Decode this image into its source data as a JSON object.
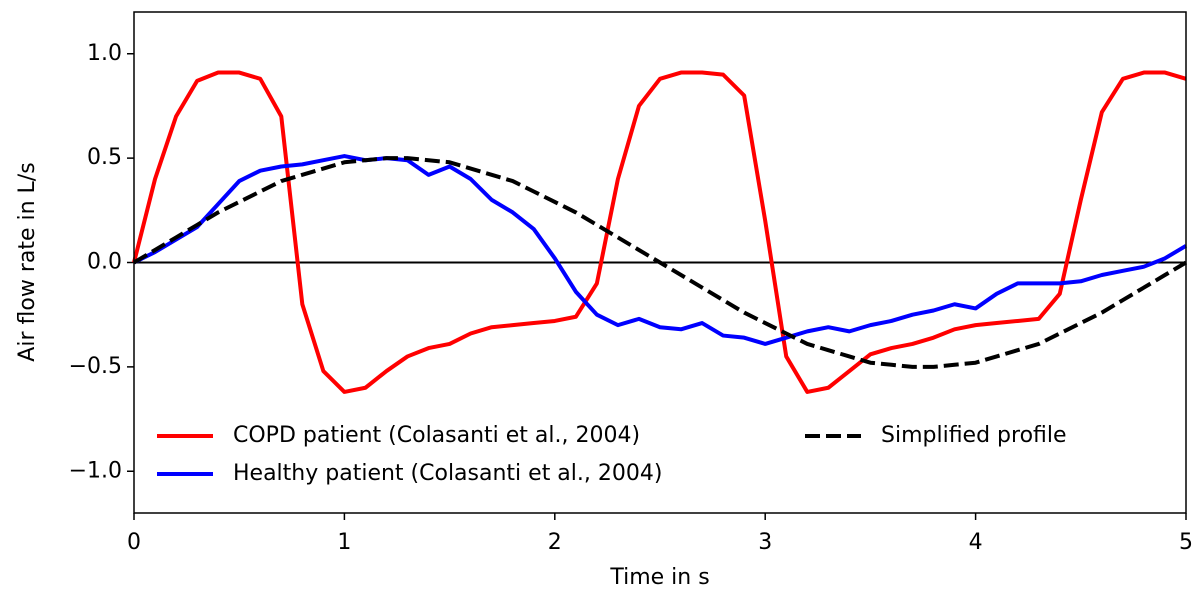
{
  "chart_data": {
    "type": "line",
    "xlabel": "Time in s",
    "ylabel": "Air flow rate in L/s",
    "x": [
      0,
      0.1,
      0.2,
      0.3,
      0.4,
      0.5,
      0.6,
      0.7,
      0.8,
      0.9,
      1.0,
      1.1,
      1.2,
      1.3,
      1.4,
      1.5,
      1.6,
      1.7,
      1.8,
      1.9,
      2.0,
      2.1,
      2.2,
      2.3,
      2.4,
      2.5,
      2.6,
      2.7,
      2.8,
      2.9,
      3.0,
      3.1,
      3.2,
      3.3,
      3.4,
      3.5,
      3.6,
      3.7,
      3.8,
      3.9,
      4.0,
      4.1,
      4.2,
      4.3,
      4.4,
      4.5,
      4.6,
      4.7,
      4.8,
      4.9,
      5.0
    ],
    "series": [
      {
        "name": "COPD patient (Colasanti et al., 2004)",
        "color": "#ff0000",
        "linestyle": "solid",
        "values": [
          0,
          0.4,
          0.7,
          0.87,
          0.91,
          0.91,
          0.88,
          0.7,
          -0.2,
          -0.52,
          -0.62,
          -0.6,
          -0.52,
          -0.45,
          -0.41,
          -0.39,
          -0.34,
          -0.31,
          -0.3,
          -0.29,
          -0.28,
          -0.26,
          -0.1,
          0.4,
          0.75,
          0.88,
          0.91,
          0.91,
          0.9,
          0.8,
          0.2,
          -0.45,
          -0.62,
          -0.6,
          -0.52,
          -0.44,
          -0.41,
          -0.39,
          -0.36,
          -0.32,
          -0.3,
          -0.29,
          -0.28,
          -0.27,
          -0.15,
          0.3,
          0.72,
          0.88,
          0.91,
          0.91,
          0.88
        ]
      },
      {
        "name": "Healthy patient (Colasanti et al., 2004)",
        "color": "#0000ff",
        "linestyle": "solid",
        "values": [
          0,
          0.05,
          0.11,
          0.17,
          0.28,
          0.39,
          0.44,
          0.46,
          0.47,
          0.49,
          0.51,
          0.49,
          0.5,
          0.49,
          0.42,
          0.46,
          0.4,
          0.3,
          0.24,
          0.16,
          0.02,
          -0.14,
          -0.25,
          -0.3,
          -0.27,
          -0.31,
          -0.32,
          -0.29,
          -0.35,
          -0.36,
          -0.39,
          -0.36,
          -0.33,
          -0.31,
          -0.33,
          -0.3,
          -0.28,
          -0.25,
          -0.23,
          -0.2,
          -0.22,
          -0.15,
          -0.1,
          -0.1,
          -0.1,
          -0.09,
          -0.06,
          -0.04,
          -0.02,
          0.02,
          0.08
        ]
      },
      {
        "name": "Simplified profile",
        "color": "#000000",
        "linestyle": "dashed",
        "values": [
          0,
          0.06,
          0.12,
          0.18,
          0.24,
          0.29,
          0.34,
          0.39,
          0.42,
          0.45,
          0.48,
          0.49,
          0.5,
          0.5,
          0.49,
          0.48,
          0.45,
          0.42,
          0.39,
          0.34,
          0.29,
          0.24,
          0.18,
          0.12,
          0.06,
          0,
          -0.06,
          -0.12,
          -0.18,
          -0.24,
          -0.29,
          -0.34,
          -0.39,
          -0.42,
          -0.45,
          -0.48,
          -0.49,
          -0.5,
          -0.5,
          -0.49,
          -0.48,
          -0.45,
          -0.42,
          -0.39,
          -0.34,
          -0.29,
          -0.24,
          -0.18,
          -0.12,
          -0.06,
          0
        ]
      }
    ],
    "xlim": [
      0,
      5
    ],
    "xticks": [
      0,
      1,
      2,
      3,
      4,
      5
    ],
    "ylim": [
      -1.2,
      1.2
    ],
    "yticks": [
      {
        "value": -1,
        "label": "−1.0"
      },
      {
        "value": -0.5,
        "label": "−0.5"
      },
      {
        "value": 0,
        "label": "0.0"
      },
      {
        "value": 0.5,
        "label": "0.5"
      },
      {
        "value": 1,
        "label": "1.0"
      }
    ],
    "hlines": [
      0
    ],
    "legend": "lower center"
  }
}
